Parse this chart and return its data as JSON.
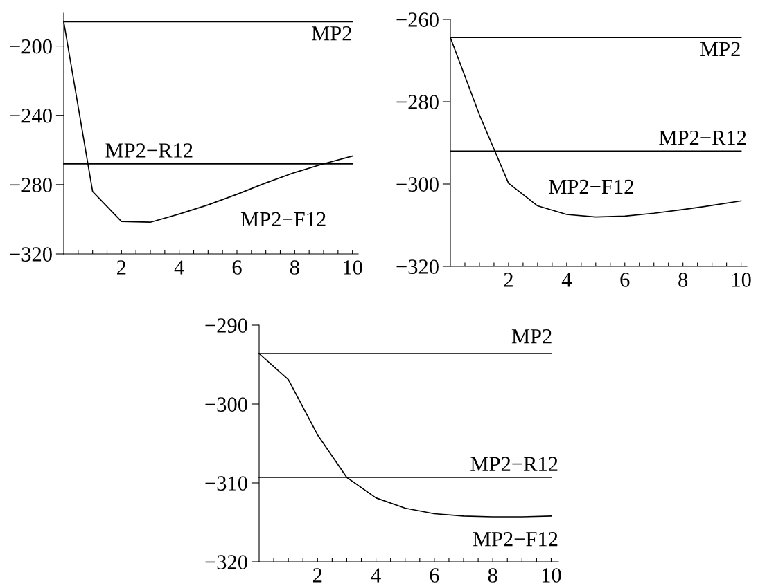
{
  "chart_data": [
    {
      "type": "line",
      "xlim": [
        0,
        10.2
      ],
      "ylim": [
        -320,
        -181
      ],
      "xticks": [
        {
          "value": 0.5,
          "label": null
        },
        {
          "value": 1,
          "label": null
        },
        {
          "value": 1.5,
          "label": null
        },
        2,
        {
          "value": 2.5,
          "label": null
        },
        {
          "value": 3,
          "label": null
        },
        {
          "value": 3.5,
          "label": null
        },
        4,
        {
          "value": 4.5,
          "label": null
        },
        {
          "value": 5,
          "label": null
        },
        {
          "value": 5.5,
          "label": null
        },
        6,
        {
          "value": 6.5,
          "label": null
        },
        {
          "value": 7,
          "label": null
        },
        {
          "value": 7.5,
          "label": null
        },
        8,
        {
          "value": 8.5,
          "label": null
        },
        {
          "value": 9,
          "label": null
        },
        {
          "value": 9.5,
          "label": null
        },
        10
      ],
      "yticks": [
        -320,
        -280,
        -240,
        -200
      ],
      "grid": false,
      "legend": false,
      "marker": "none",
      "line_style": "solid",
      "series": [
        {
          "name": "MP2",
          "color": "#000000",
          "x": [
            0,
            10
          ],
          "values": [
            -186,
            -186
          ]
        },
        {
          "name": "MP2−R12",
          "color": "#000000",
          "x": [
            0,
            10
          ],
          "values": [
            -268,
            -268
          ]
        },
        {
          "name": "MP2−F12",
          "color": "#000000",
          "x": [
            0,
            1,
            2,
            3,
            4,
            5,
            6,
            7,
            8,
            9,
            10
          ],
          "values": [
            -186,
            -284,
            -301.3,
            -301.7,
            -297,
            -291.7,
            -285.6,
            -279,
            -273,
            -268,
            -263.5
          ]
        }
      ]
    },
    {
      "type": "line",
      "xlim": [
        0,
        10.2
      ],
      "ylim": [
        -320,
        -260
      ],
      "xticks": [
        {
          "value": 0.5,
          "label": null
        },
        {
          "value": 1,
          "label": null
        },
        {
          "value": 1.5,
          "label": null
        },
        2,
        {
          "value": 2.5,
          "label": null
        },
        {
          "value": 3,
          "label": null
        },
        {
          "value": 3.5,
          "label": null
        },
        4,
        {
          "value": 4.5,
          "label": null
        },
        {
          "value": 5,
          "label": null
        },
        {
          "value": 5.5,
          "label": null
        },
        6,
        {
          "value": 6.5,
          "label": null
        },
        {
          "value": 7,
          "label": null
        },
        {
          "value": 7.5,
          "label": null
        },
        8,
        {
          "value": 8.5,
          "label": null
        },
        {
          "value": 9,
          "label": null
        },
        {
          "value": 9.5,
          "label": null
        },
        10
      ],
      "yticks": [
        -320,
        -300,
        -280,
        -260
      ],
      "grid": false,
      "legend": false,
      "marker": "none",
      "line_style": "solid",
      "series": [
        {
          "name": "MP2",
          "color": "#000000",
          "x": [
            0,
            10
          ],
          "values": [
            -264.4,
            -264.4
          ]
        },
        {
          "name": "MP2−R12",
          "color": "#000000",
          "x": [
            0,
            10
          ],
          "values": [
            -292,
            -292
          ]
        },
        {
          "name": "MP2−F12",
          "color": "#000000",
          "x": [
            0,
            1,
            2,
            3,
            4,
            5,
            6,
            7,
            8,
            9,
            10
          ],
          "values": [
            -264.4,
            -283.2,
            -299.8,
            -305.3,
            -307.4,
            -308,
            -307.8,
            -307.1,
            -306.2,
            -305.2,
            -304.1
          ]
        }
      ]
    },
    {
      "type": "line",
      "xlim": [
        0,
        10.25
      ],
      "ylim": [
        -320,
        -290
      ],
      "xticks": [
        {
          "value": 0.5,
          "label": null
        },
        {
          "value": 1,
          "label": null
        },
        {
          "value": 1.5,
          "label": null
        },
        2,
        {
          "value": 2.5,
          "label": null
        },
        {
          "value": 3,
          "label": null
        },
        {
          "value": 3.5,
          "label": null
        },
        4,
        {
          "value": 4.5,
          "label": null
        },
        {
          "value": 5,
          "label": null
        },
        {
          "value": 5.5,
          "label": null
        },
        6,
        {
          "value": 6.5,
          "label": null
        },
        {
          "value": 7,
          "label": null
        },
        {
          "value": 7.5,
          "label": null
        },
        8,
        {
          "value": 8.5,
          "label": null
        },
        {
          "value": 9,
          "label": null
        },
        {
          "value": 9.5,
          "label": null
        },
        10
      ],
      "yticks": [
        -320,
        -310,
        -300,
        -290
      ],
      "grid": false,
      "legend": false,
      "marker": "none",
      "line_style": "solid",
      "series": [
        {
          "name": "MP2",
          "color": "#000000",
          "x": [
            0,
            10
          ],
          "values": [
            -293.6,
            -293.6
          ]
        },
        {
          "name": "MP2−R12",
          "color": "#000000",
          "x": [
            0,
            10
          ],
          "values": [
            -309.3,
            -309.3
          ]
        },
        {
          "name": "MP2−F12",
          "color": "#000000",
          "x": [
            0,
            1,
            2,
            3,
            4,
            5,
            6,
            7,
            8,
            9,
            10
          ],
          "values": [
            -293.6,
            -296.9,
            -303.9,
            -309.3,
            -311.9,
            -313.2,
            -313.9,
            -314.2,
            -314.3,
            -314.3,
            -314.2
          ]
        }
      ]
    }
  ]
}
